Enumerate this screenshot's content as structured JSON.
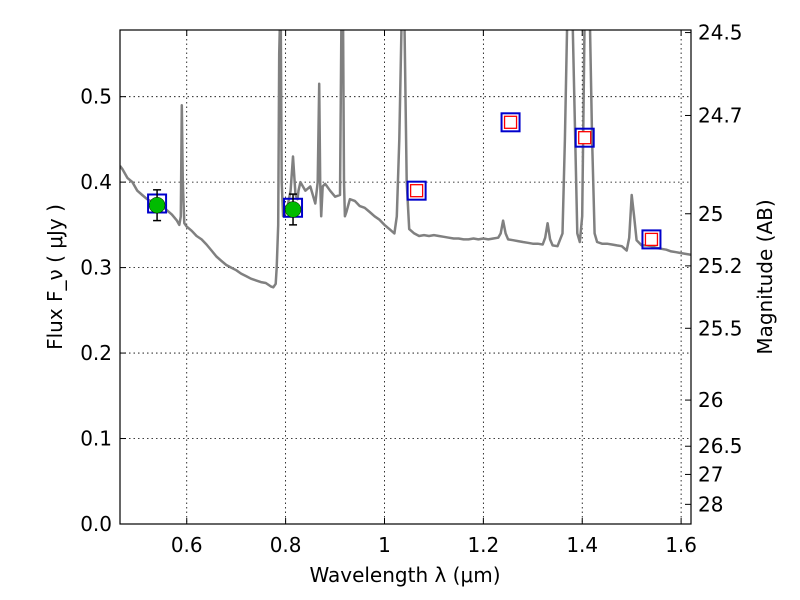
{
  "chart_data": {
    "type": "line",
    "xlabel": "Wavelength  λ (μm)",
    "ylabel": "Flux  F_ν  ( μJy )",
    "y2label": "Magnitude (AB)",
    "xlim": [
      0.465,
      1.62
    ],
    "ylim": [
      0.0,
      0.578
    ],
    "grid": true,
    "x_ticks": [
      0.6,
      0.8,
      1.0,
      1.2,
      1.4,
      1.6
    ],
    "x_tick_labels": [
      "0.6",
      "0.8",
      "1",
      "1.2",
      "1.4",
      "1.6"
    ],
    "y_ticks": [
      0.0,
      0.1,
      0.2,
      0.3,
      0.4,
      0.5
    ],
    "y_tick_labels": [
      "0.0",
      "0.1",
      "0.2",
      "0.3",
      "0.4",
      "0.5"
    ],
    "y2_ticks": [
      {
        "label": "24.5",
        "flux": 0.575
      },
      {
        "label": "24.7",
        "flux": 0.478
      },
      {
        "label": "25",
        "flux": 0.363
      },
      {
        "label": "25.2",
        "flux": 0.302
      },
      {
        "label": "25.5",
        "flux": 0.229
      },
      {
        "label": "26",
        "flux": 0.145
      },
      {
        "label": "26.5",
        "flux": 0.091
      },
      {
        "label": "27",
        "flux": 0.058
      },
      {
        "label": "28",
        "flux": 0.023
      }
    ],
    "colors": {
      "sed": "#808080",
      "observed_marker": "#00bb00",
      "model_box": "#0000cc",
      "upper_box": "#ff0000",
      "grid": "#000000"
    },
    "sed_model": {
      "x": [
        0.465,
        0.47,
        0.48,
        0.49,
        0.5,
        0.51,
        0.52,
        0.53,
        0.54,
        0.55,
        0.56,
        0.57,
        0.58,
        0.585,
        0.588,
        0.59,
        0.592,
        0.595,
        0.6,
        0.61,
        0.62,
        0.63,
        0.64,
        0.65,
        0.66,
        0.67,
        0.68,
        0.69,
        0.7,
        0.71,
        0.72,
        0.73,
        0.74,
        0.75,
        0.76,
        0.77,
        0.775,
        0.78,
        0.782,
        0.785,
        0.787,
        0.789,
        0.79,
        0.792,
        0.795,
        0.8,
        0.805,
        0.81,
        0.815,
        0.82,
        0.824,
        0.826,
        0.83,
        0.84,
        0.85,
        0.86,
        0.865,
        0.868,
        0.87,
        0.872,
        0.875,
        0.88,
        0.89,
        0.9,
        0.91,
        0.913,
        0.916,
        0.918,
        0.92,
        0.923,
        0.93,
        0.94,
        0.95,
        0.96,
        0.97,
        0.98,
        0.99,
        1.0,
        1.01,
        1.02,
        1.025,
        1.03,
        1.035,
        1.04,
        1.045,
        1.05,
        1.06,
        1.07,
        1.08,
        1.09,
        1.1,
        1.11,
        1.12,
        1.13,
        1.14,
        1.15,
        1.16,
        1.17,
        1.18,
        1.19,
        1.2,
        1.21,
        1.22,
        1.23,
        1.235,
        1.24,
        1.245,
        1.25,
        1.26,
        1.27,
        1.28,
        1.29,
        1.3,
        1.31,
        1.32,
        1.325,
        1.33,
        1.335,
        1.34,
        1.35,
        1.36,
        1.365,
        1.37,
        1.375,
        1.38,
        1.39,
        1.395,
        1.4,
        1.405,
        1.41,
        1.415,
        1.42,
        1.425,
        1.43,
        1.44,
        1.45,
        1.46,
        1.47,
        1.48,
        1.49,
        1.495,
        1.5,
        1.505,
        1.51,
        1.52,
        1.53,
        1.54,
        1.55,
        1.56,
        1.57,
        1.58,
        1.59,
        1.6,
        1.62
      ],
      "y": [
        0.419,
        0.415,
        0.405,
        0.4,
        0.39,
        0.385,
        0.38,
        0.377,
        0.373,
        0.372,
        0.367,
        0.362,
        0.355,
        0.35,
        0.36,
        0.49,
        0.4,
        0.352,
        0.348,
        0.343,
        0.337,
        0.333,
        0.327,
        0.32,
        0.313,
        0.308,
        0.303,
        0.3,
        0.297,
        0.293,
        0.29,
        0.287,
        0.285,
        0.283,
        0.282,
        0.278,
        0.277,
        0.281,
        0.3,
        0.35,
        0.55,
        0.6,
        0.6,
        0.4,
        0.36,
        0.365,
        0.375,
        0.39,
        0.43,
        0.385,
        0.38,
        0.39,
        0.4,
        0.39,
        0.395,
        0.375,
        0.4,
        0.515,
        0.4,
        0.36,
        0.395,
        0.398,
        0.39,
        0.383,
        0.385,
        0.6,
        0.6,
        0.4,
        0.36,
        0.365,
        0.38,
        0.378,
        0.372,
        0.37,
        0.365,
        0.36,
        0.356,
        0.35,
        0.345,
        0.34,
        0.36,
        0.45,
        0.6,
        0.6,
        0.4,
        0.345,
        0.34,
        0.337,
        0.338,
        0.337,
        0.338,
        0.337,
        0.336,
        0.335,
        0.334,
        0.334,
        0.333,
        0.333,
        0.334,
        0.333,
        0.334,
        0.333,
        0.334,
        0.335,
        0.34,
        0.355,
        0.34,
        0.333,
        0.332,
        0.331,
        0.33,
        0.329,
        0.328,
        0.328,
        0.327,
        0.335,
        0.352,
        0.333,
        0.326,
        0.325,
        0.34,
        0.45,
        0.6,
        0.6,
        0.6,
        0.34,
        0.33,
        0.36,
        0.6,
        0.6,
        0.6,
        0.45,
        0.34,
        0.33,
        0.328,
        0.328,
        0.327,
        0.326,
        0.325,
        0.32,
        0.335,
        0.385,
        0.36,
        0.332,
        0.326,
        0.326,
        0.325,
        0.323,
        0.322,
        0.321,
        0.319,
        0.318,
        0.317,
        0.315
      ]
    },
    "observed": [
      {
        "x": 0.54,
        "y": 0.373,
        "yerr": 0.018
      },
      {
        "x": 0.815,
        "y": 0.368,
        "yerr": 0.018
      }
    ],
    "model_photometry": [
      {
        "x": 0.54,
        "y": 0.375
      },
      {
        "x": 0.815,
        "y": 0.37
      },
      {
        "x": 1.065,
        "y": 0.39
      },
      {
        "x": 1.255,
        "y": 0.47
      },
      {
        "x": 1.405,
        "y": 0.452
      },
      {
        "x": 1.54,
        "y": 0.333
      }
    ],
    "upper_limits": [
      {
        "x": 1.065,
        "y": 0.39
      },
      {
        "x": 1.255,
        "y": 0.47
      },
      {
        "x": 1.405,
        "y": 0.452
      },
      {
        "x": 1.54,
        "y": 0.333
      }
    ]
  }
}
